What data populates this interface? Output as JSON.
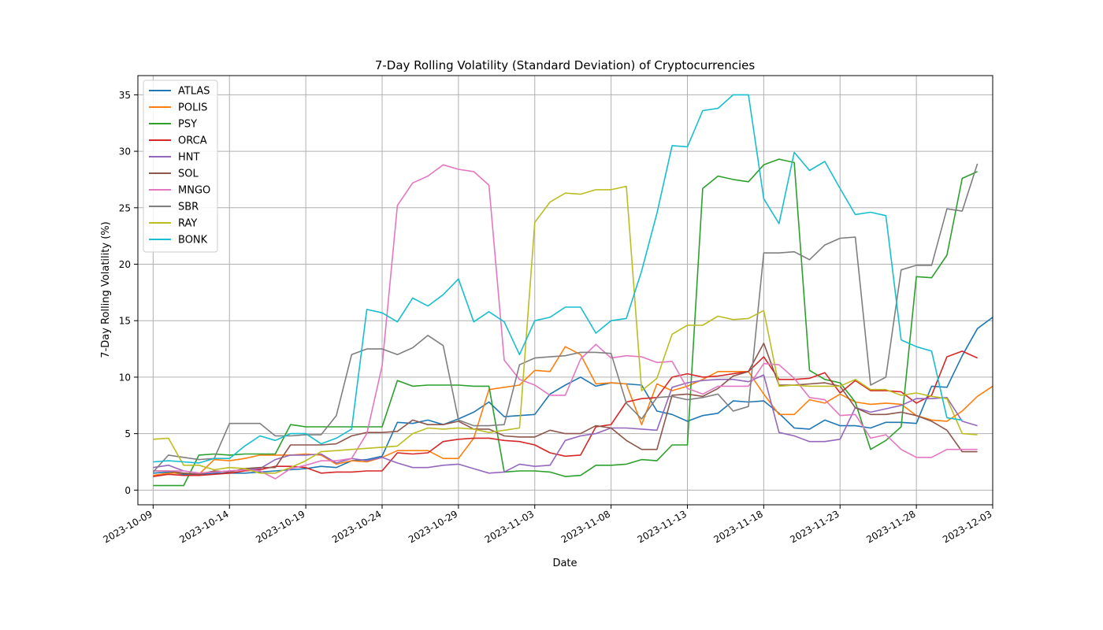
{
  "chart_data": {
    "type": "line",
    "title": "7-Day Rolling Volatility (Standard Deviation) of Cryptocurrencies",
    "xlabel": "Date",
    "ylabel": "7-Day Rolling Volatility (%)",
    "x_start": "2023-10-09",
    "x_end": "2023-12-01",
    "xlim": [
      "2023-10-08",
      "2023-12-03"
    ],
    "ylim": [
      -1.3,
      36.7
    ],
    "x_ticks": [
      "2023-10-09",
      "2023-10-14",
      "2023-10-19",
      "2023-10-24",
      "2023-10-29",
      "2023-11-03",
      "2023-11-08",
      "2023-11-13",
      "2023-11-18",
      "2023-11-23",
      "2023-11-28",
      "2023-12-03"
    ],
    "y_ticks": [
      0,
      5,
      10,
      15,
      20,
      25,
      30,
      35
    ],
    "grid": true,
    "legend_position": "top-left",
    "series": [
      {
        "name": "ATLAS",
        "color": "#1f77b4",
        "values": [
          1.5,
          1.6,
          1.4,
          1.4,
          1.5,
          1.5,
          1.5,
          1.6,
          1.7,
          1.8,
          1.9,
          2.1,
          2.0,
          2.6,
          2.7,
          3.0,
          6.0,
          5.9,
          6.2,
          5.8,
          6.3,
          6.9,
          7.8,
          6.5,
          6.6,
          6.7,
          8.5,
          9.3,
          10.0,
          9.2,
          9.5,
          9.4,
          9.3,
          7.0,
          6.7,
          6.1,
          6.6,
          6.8,
          7.9,
          7.8,
          7.9,
          6.8,
          5.5,
          5.4,
          6.2,
          5.7,
          5.7,
          5.5,
          6.0,
          6.0,
          5.9,
          9.2,
          9.1,
          11.9,
          14.3,
          15.3
        ]
      },
      {
        "name": "POLIS",
        "color": "#ff7f0e",
        "values": [
          1.3,
          1.5,
          1.5,
          1.4,
          2.7,
          2.6,
          2.8,
          3.1,
          3.1,
          3.1,
          3.2,
          3.1,
          2.3,
          2.6,
          2.5,
          2.9,
          3.5,
          3.5,
          3.5,
          2.8,
          2.8,
          4.6,
          8.9,
          9.1,
          9.3,
          10.6,
          10.5,
          12.7,
          12.0,
          9.4,
          9.5,
          9.4,
          5.8,
          9.4,
          8.8,
          9.2,
          9.8,
          10.5,
          10.5,
          10.5,
          8.5,
          6.7,
          6.7,
          8.0,
          7.7,
          8.5,
          7.8,
          7.6,
          7.7,
          7.6,
          6.6,
          6.2,
          6.1,
          7.0,
          8.3,
          9.2
        ]
      },
      {
        "name": "PSY",
        "color": "#2ca02c",
        "values": [
          0.4,
          0.4,
          0.4,
          3.1,
          3.2,
          3.1,
          3.2,
          3.2,
          3.2,
          5.8,
          5.6,
          5.6,
          5.6,
          5.6,
          5.6,
          5.6,
          9.7,
          9.2,
          9.3,
          9.3,
          9.3,
          9.2,
          9.2,
          1.6,
          1.7,
          1.7,
          1.6,
          1.2,
          1.3,
          2.2,
          2.2,
          2.3,
          2.7,
          2.6,
          4.0,
          4.0,
          26.7,
          27.8,
          27.5,
          27.3,
          28.8,
          29.3,
          29.0,
          10.6,
          9.8,
          9.5,
          7.8,
          3.6,
          4.4,
          5.6,
          18.9,
          18.8,
          20.8,
          27.6,
          28.2
        ]
      },
      {
        "name": "ORCA",
        "color": "#d62728",
        "values": [
          1.2,
          1.4,
          1.3,
          1.3,
          1.4,
          1.5,
          1.7,
          1.8,
          2.1,
          2.1,
          2.0,
          1.5,
          1.6,
          1.6,
          1.7,
          1.7,
          3.3,
          3.2,
          3.3,
          4.3,
          4.5,
          4.6,
          4.6,
          4.4,
          4.3,
          4.0,
          3.3,
          3.0,
          3.1,
          5.6,
          5.8,
          7.8,
          8.1,
          8.2,
          10.0,
          10.3,
          10.0,
          10.1,
          10.3,
          10.5,
          11.8,
          9.8,
          9.8,
          9.9,
          10.4,
          8.6,
          9.7,
          8.8,
          8.8,
          8.7,
          7.7,
          8.4,
          11.8,
          12.3,
          11.7
        ]
      },
      {
        "name": "HNT",
        "color": "#9467bd",
        "values": [
          2.0,
          2.2,
          1.7,
          1.5,
          1.6,
          1.7,
          1.8,
          1.9,
          2.7,
          3.1,
          3.1,
          3.2,
          2.4,
          2.8,
          2.6,
          2.9,
          2.4,
          2.0,
          2.0,
          2.2,
          2.3,
          1.9,
          1.5,
          1.6,
          2.3,
          2.1,
          2.2,
          4.4,
          4.8,
          5.0,
          5.5,
          5.5,
          5.4,
          5.3,
          9.1,
          9.5,
          9.7,
          9.8,
          9.8,
          9.6,
          10.2,
          5.1,
          4.8,
          4.3,
          4.3,
          4.5,
          7.3,
          6.9,
          7.2,
          7.5,
          8.1,
          8.1,
          8.2,
          6.1,
          5.7
        ]
      },
      {
        "name": "SOL",
        "color": "#8c564b",
        "values": [
          1.7,
          1.7,
          1.5,
          1.4,
          1.7,
          1.6,
          1.9,
          2.0,
          2.0,
          4.0,
          4.0,
          4.0,
          4.1,
          4.8,
          5.1,
          5.1,
          5.2,
          6.2,
          5.8,
          5.8,
          6.1,
          5.4,
          5.4,
          4.8,
          4.7,
          4.7,
          5.3,
          5.0,
          5.0,
          5.7,
          5.5,
          4.4,
          3.6,
          3.6,
          8.4,
          8.5,
          8.3,
          9.0,
          10.1,
          10.5,
          13.0,
          9.3,
          9.3,
          9.4,
          9.5,
          9.2,
          7.3,
          6.7,
          6.7,
          6.9,
          6.6,
          6.1,
          5.3,
          3.4,
          3.4
        ]
      },
      {
        "name": "MNGO",
        "color": "#e377c2",
        "values": [
          1.7,
          1.7,
          1.7,
          1.5,
          1.6,
          1.7,
          1.8,
          1.7,
          1.0,
          1.9,
          2.2,
          2.6,
          2.6,
          2.8,
          5.0,
          11.0,
          25.2,
          27.2,
          27.8,
          28.8,
          28.4,
          28.2,
          27.0,
          11.5,
          9.8,
          9.3,
          8.4,
          8.4,
          11.6,
          12.9,
          11.7,
          11.9,
          11.8,
          11.3,
          11.4,
          9.0,
          8.5,
          9.2,
          9.2,
          9.2,
          11.2,
          11.1,
          9.9,
          8.2,
          8.0,
          6.6,
          6.7,
          4.6,
          4.9,
          3.6,
          2.9,
          2.9,
          3.6,
          3.6,
          3.6
        ]
      },
      {
        "name": "SBR",
        "color": "#7f7f7f",
        "values": [
          1.6,
          3.1,
          2.9,
          2.7,
          2.8,
          5.9,
          5.9,
          5.9,
          4.8,
          4.8,
          4.9,
          4.9,
          6.6,
          12.0,
          12.5,
          12.5,
          12.0,
          12.6,
          13.7,
          12.8,
          6.2,
          5.7,
          5.7,
          5.8,
          11.1,
          11.7,
          11.8,
          11.9,
          12.2,
          12.2,
          12.1,
          7.7,
          6.3,
          8.2,
          8.3,
          8.0,
          8.2,
          8.5,
          7.0,
          7.4,
          21.0,
          21.0,
          21.1,
          20.4,
          21.7,
          22.3,
          22.4,
          9.3,
          10.0,
          19.5,
          19.9,
          19.9,
          24.9,
          24.7,
          28.9
        ]
      },
      {
        "name": "RAY",
        "color": "#bcbd22",
        "values": [
          4.5,
          4.6,
          2.2,
          2.2,
          1.8,
          2.0,
          1.9,
          1.5,
          1.5,
          2.0,
          2.6,
          3.4,
          3.5,
          3.6,
          3.7,
          3.8,
          3.9,
          5.0,
          5.5,
          5.4,
          5.5,
          5.4,
          5.1,
          5.3,
          5.5,
          23.7,
          25.5,
          26.3,
          26.2,
          26.6,
          26.6,
          26.9,
          8.8,
          9.9,
          13.8,
          14.6,
          14.6,
          15.4,
          15.1,
          15.2,
          15.9,
          9.2,
          9.3,
          9.2,
          9.2,
          9.2,
          9.8,
          8.9,
          8.9,
          8.4,
          8.6,
          8.3,
          8.1,
          5.0,
          4.9
        ]
      },
      {
        "name": "BONK",
        "color": "#17becf",
        "values": [
          2.5,
          2.6,
          2.5,
          2.4,
          2.8,
          2.8,
          3.9,
          4.8,
          4.4,
          5.0,
          5.0,
          4.1,
          4.6,
          5.4,
          16.0,
          15.7,
          14.9,
          17.0,
          16.3,
          17.3,
          18.7,
          14.9,
          15.8,
          14.9,
          12.0,
          15.0,
          15.3,
          16.2,
          16.2,
          13.9,
          15.0,
          15.2,
          19.4,
          24.5,
          30.5,
          30.4,
          33.6,
          33.8,
          35.0,
          35.0,
          25.8,
          23.6,
          29.9,
          28.3,
          29.1,
          26.7,
          24.4,
          24.6,
          24.3,
          13.3,
          12.7,
          12.3,
          6.4,
          6.2
        ]
      }
    ]
  }
}
